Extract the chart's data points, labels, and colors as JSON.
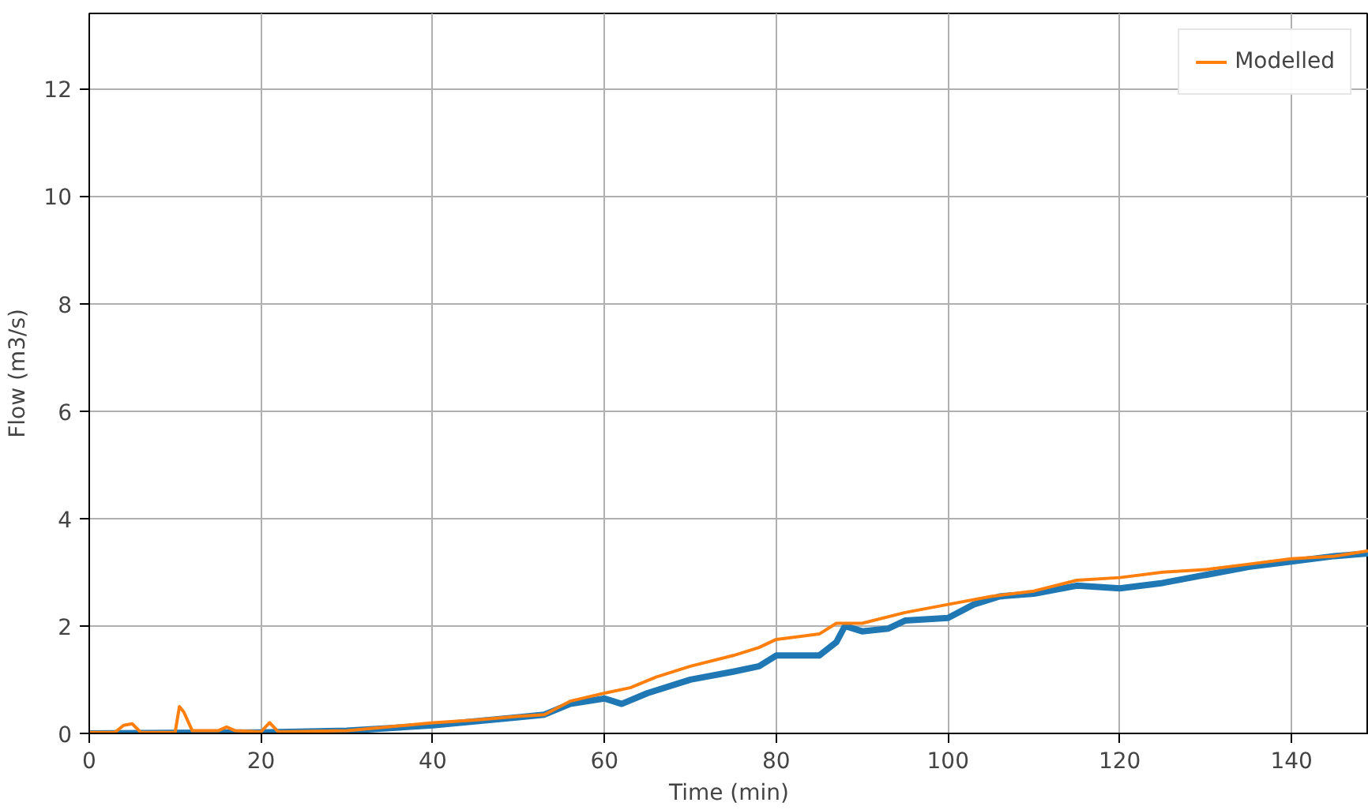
{
  "chart_data": {
    "type": "line",
    "xlabel": "Time (min)",
    "ylabel": "Flow (m3/s)",
    "xlim": [
      0,
      149
    ],
    "ylim": [
      0,
      13.4
    ],
    "xticks": [
      0,
      20,
      40,
      60,
      80,
      100,
      120,
      140
    ],
    "yticks": [
      0,
      2,
      4,
      6,
      8,
      10,
      12
    ],
    "grid": true,
    "legend": "top right",
    "series": [
      {
        "color": "#1f77b4",
        "x": [
          0,
          20,
          30,
          40,
          50,
          53,
          56,
          60,
          62,
          65,
          70,
          75,
          78,
          80,
          85,
          87,
          88,
          90,
          93,
          95,
          100,
          103,
          106,
          110,
          115,
          120,
          125,
          130,
          135,
          140,
          145,
          149
        ],
        "values": [
          0,
          0.02,
          0.05,
          0.15,
          0.3,
          0.35,
          0.55,
          0.65,
          0.55,
          0.75,
          1.0,
          1.15,
          1.25,
          1.45,
          1.45,
          1.7,
          2.0,
          1.9,
          1.95,
          2.1,
          2.15,
          2.4,
          2.55,
          2.6,
          2.75,
          2.7,
          2.8,
          2.95,
          3.1,
          3.2,
          3.3,
          3.35
        ]
      },
      {
        "name": "Modelled",
        "color": "#ff7f0e",
        "x": [
          0,
          3,
          4,
          5,
          6,
          10,
          10.5,
          11,
          12,
          15,
          16,
          17,
          20,
          21,
          22,
          30,
          40,
          45,
          50,
          53,
          56,
          60,
          63,
          66,
          70,
          75,
          78,
          80,
          85,
          87,
          90,
          95,
          100,
          105,
          110,
          115,
          120,
          125,
          130,
          135,
          140,
          145,
          149
        ],
        "values": [
          0.02,
          0.02,
          0.15,
          0.18,
          0.02,
          0.02,
          0.5,
          0.4,
          0.05,
          0.05,
          0.12,
          0.05,
          0.03,
          0.2,
          0.03,
          0.05,
          0.2,
          0.25,
          0.32,
          0.35,
          0.6,
          0.75,
          0.85,
          1.05,
          1.25,
          1.45,
          1.6,
          1.75,
          1.85,
          2.05,
          2.05,
          2.25,
          2.4,
          2.55,
          2.65,
          2.85,
          2.9,
          3.0,
          3.05,
          3.15,
          3.25,
          3.3,
          3.4
        ]
      }
    ]
  }
}
